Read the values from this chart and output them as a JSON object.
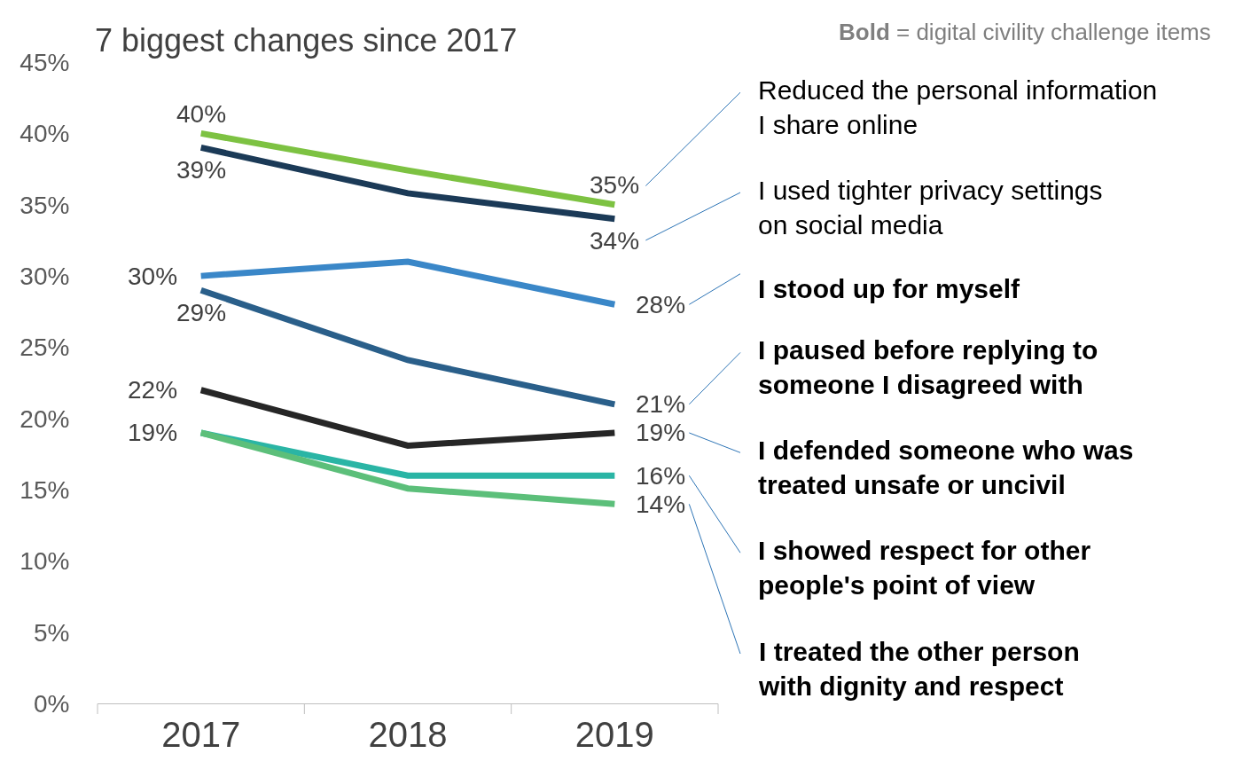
{
  "chart_data": {
    "type": "line",
    "title": "7 biggest changes since 2017",
    "categories": [
      "2017",
      "2018",
      "2019"
    ],
    "ylim": [
      0,
      45
    ],
    "yticks": [
      {
        "value": 0,
        "label": "0%"
      },
      {
        "value": 5,
        "label": "5%"
      },
      {
        "value": 10,
        "label": "10%"
      },
      {
        "value": 15,
        "label": "15%"
      },
      {
        "value": 20,
        "label": "20%"
      },
      {
        "value": 25,
        "label": "25%"
      },
      {
        "value": 30,
        "label": "30%"
      },
      {
        "value": 35,
        "label": "35%"
      },
      {
        "value": 40,
        "label": "40%"
      },
      {
        "value": 45,
        "label": "45%"
      }
    ],
    "legend": false,
    "marker": "none",
    "line_style": "solid",
    "annotations": [
      "Bold = digital civility challenge items"
    ],
    "series": [
      {
        "name": "Reduced the personal information I share online",
        "color": "#7dc242",
        "values": [
          40,
          37.4,
          35
        ],
        "value_labels": [
          "40%",
          null,
          "35%"
        ]
      },
      {
        "name": "I used tighter privacy settings on social media",
        "color": "#1b3a57",
        "values": [
          39,
          35.8,
          34
        ],
        "value_labels": [
          "39%",
          null,
          "34%"
        ]
      },
      {
        "name": "I stood up for myself",
        "color": "#3a87c8",
        "values": [
          30,
          31,
          28
        ],
        "value_labels": [
          "30%",
          null,
          "28%"
        ]
      },
      {
        "name": "I paused before replying to someone I disagreed with",
        "color": "#2a5f8a",
        "values": [
          29,
          24.1,
          21
        ],
        "value_labels": [
          "29%",
          null,
          "21%"
        ]
      },
      {
        "name": "I defended someone who was treated unsafe or uncivil",
        "color": "#262626",
        "values": [
          22,
          18.1,
          19
        ],
        "value_labels": [
          "22%",
          null,
          "19%"
        ]
      },
      {
        "name": "I showed respect for other people's point of view",
        "color": "#2ab5a5",
        "values": [
          19,
          16,
          16
        ],
        "value_labels": [
          "19%",
          null,
          "16%"
        ]
      },
      {
        "name": "I treated the other person with dignity and respect",
        "color": "#5cbf7a",
        "values": [
          19,
          15.1,
          14
        ],
        "value_labels": [
          null,
          null,
          "14%"
        ]
      }
    ]
  }
}
